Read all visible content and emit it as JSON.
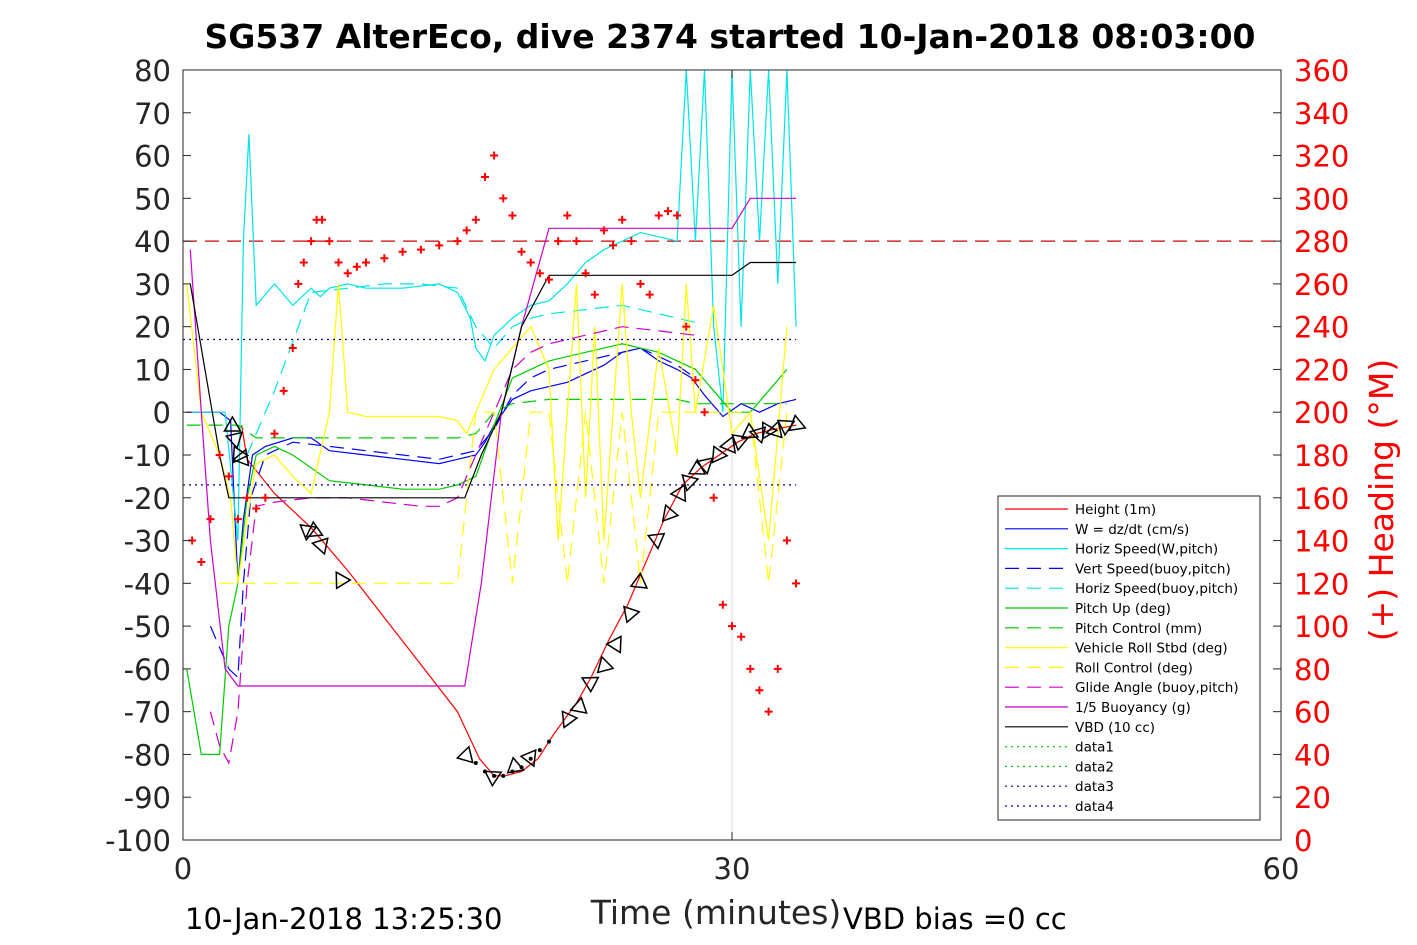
{
  "chart_data": {
    "type": "line",
    "title": "SG537 AlterEco, dive 2374 started 10-Jan-2018 08:03:00",
    "xlabel": "Time (minutes)",
    "ylabel_right": "(+) Heading (°M)",
    "xlim": [
      0,
      60
    ],
    "ylim_left": [
      -100,
      80
    ],
    "ylim_right": [
      0,
      360
    ],
    "x_ticks": [
      0,
      30,
      60
    ],
    "y_ticks_left": [
      80,
      70,
      60,
      50,
      40,
      30,
      20,
      10,
      0,
      -10,
      -20,
      -30,
      -40,
      -50,
      -60,
      -70,
      -80,
      -90,
      -100
    ],
    "y_ticks_right": [
      360,
      340,
      320,
      300,
      280,
      260,
      240,
      220,
      200,
      180,
      160,
      140,
      120,
      100,
      80,
      60,
      40,
      20,
      0
    ],
    "grid": "x-only at 30",
    "legend_position": "lower-right",
    "footer_left": "10-Jan-2018 13:25:30",
    "footer_right": "VBD bias =0 cc",
    "colors": {
      "height": "#ff0000",
      "w": "#0000ff",
      "horiz": "#00e5e5",
      "pitch": "#00cc00",
      "roll": "#ffff00",
      "glide": "#cc00cc",
      "buoy": "#cc00cc",
      "vbd": "#000000",
      "heading": "#ff0000"
    },
    "series": [
      {
        "key": "height",
        "name": "Height (1m)",
        "color": "#ff0000",
        "style": "solid",
        "x": [
          3.2,
          3.5,
          5,
          7,
          9,
          11,
          13,
          15,
          16.2,
          17,
          17.6,
          18.5,
          19.4,
          20.3,
          21.5,
          22.3,
          23.3,
          24.3,
          25.3,
          26.3,
          27.3,
          28.3,
          29.3,
          30.3,
          31.3,
          32.3,
          33.5
        ],
        "y": [
          -3,
          -11,
          -19,
          -27,
          -37,
          -48,
          -59,
          -70,
          -81,
          -85,
          -85,
          -84,
          -81,
          -75,
          -68,
          -62,
          -53,
          -45,
          -35,
          -25,
          -17,
          -13,
          -10,
          -7,
          -5,
          -4,
          -3
        ]
      },
      {
        "key": "w",
        "name": "W = dz/dt (cm/s)",
        "color": "#0000ff",
        "style": "solid",
        "x": [
          0.2,
          1,
          2,
          2.6,
          3,
          3.3,
          3.8,
          4.5,
          6,
          7,
          8,
          10,
          12,
          14,
          15,
          16,
          16.5,
          17,
          18,
          19,
          20,
          21,
          22,
          23,
          24,
          25,
          26,
          27,
          27.8,
          28.5,
          29.5,
          30.5,
          31.5,
          32.5,
          33.5
        ],
        "y": [
          0,
          0,
          0,
          -2,
          -40,
          -25,
          -10,
          -8,
          -6,
          -6,
          -9,
          -10,
          -11,
          -12,
          -11,
          -10,
          -7,
          -3,
          3,
          5,
          6,
          7,
          9,
          11,
          14,
          15,
          12,
          10,
          8,
          4,
          -1,
          2,
          0,
          2,
          3
        ]
      },
      {
        "key": "horizW",
        "name": "Horiz Speed(W,pitch)",
        "color": "#00e5e5",
        "style": "solid",
        "x": [
          0.5,
          1.5,
          2.3,
          3,
          3.3,
          3.6,
          4,
          5,
          6,
          7,
          7.5,
          8,
          9,
          10,
          12,
          14,
          15,
          15.7,
          16,
          16.5,
          17,
          18,
          19,
          20,
          21,
          22,
          23,
          24,
          25,
          26,
          27,
          27.5,
          28,
          28.5,
          29,
          29.5,
          30,
          30.5,
          31,
          31.5,
          32,
          32.5,
          33,
          33.5
        ],
        "y": [
          0,
          0,
          0,
          -30,
          40,
          65,
          25,
          30,
          25,
          29,
          27,
          29,
          30,
          29,
          29,
          30,
          28,
          22,
          15,
          12,
          18,
          22,
          25,
          26,
          30,
          35,
          38,
          40,
          42,
          41,
          40,
          80,
          40,
          80,
          20,
          0,
          80,
          20,
          80,
          40,
          80,
          30,
          80,
          20
        ]
      },
      {
        "key": "vertBuoy",
        "name": "Vert Speed(buoy,pitch)",
        "color": "#0000ff",
        "style": "dashed",
        "x": [
          1.5,
          2,
          2.5,
          3,
          3.3,
          3.7,
          4.5,
          6,
          8,
          10,
          12,
          14,
          15,
          16,
          17,
          18,
          19,
          20,
          22,
          24,
          25,
          26,
          27,
          28
        ],
        "y": [
          -50,
          -55,
          -60,
          -62,
          -40,
          -20,
          -10,
          -7,
          -8,
          -9,
          -10,
          -11,
          -10,
          -9,
          -4,
          4,
          8,
          10,
          12,
          14,
          15,
          13,
          11,
          8
        ]
      },
      {
        "key": "horizBuoy",
        "name": "Horiz Speed(buoy,pitch)",
        "color": "#00e5e5",
        "style": "dashed",
        "x": [
          3.5,
          4,
          5,
          7,
          9,
          11,
          13,
          15,
          16,
          17,
          18,
          19,
          20,
          22,
          24,
          25,
          26,
          27,
          28
        ],
        "y": [
          -10,
          -5,
          5,
          28,
          29,
          30,
          30,
          29,
          20,
          15,
          20,
          22,
          23,
          24,
          25,
          24,
          23,
          22,
          21
        ]
      },
      {
        "key": "pitch",
        "name": "Pitch Up (deg)",
        "color": "#00cc00",
        "style": "solid",
        "x": [
          0.2,
          1,
          1.5,
          2,
          2.5,
          3,
          3.5,
          4,
          5,
          6,
          8,
          10,
          12,
          14,
          15,
          16,
          17,
          18,
          19,
          20,
          21,
          22,
          23,
          24,
          25,
          26,
          27,
          28,
          29,
          30,
          31,
          32,
          33
        ],
        "y": [
          -60,
          -80,
          -80,
          -80,
          -50,
          -40,
          -20,
          -10,
          -8,
          -10,
          -16,
          -17,
          -18,
          -18,
          -17,
          -15,
          -3,
          8,
          10,
          12,
          13,
          14,
          15,
          16,
          15,
          14,
          12,
          10,
          5,
          0,
          0,
          5,
          10
        ]
      },
      {
        "key": "pitchCtrl",
        "name": "Pitch Control (mm)",
        "color": "#00cc00",
        "style": "dashed",
        "x": [
          0.2,
          2,
          3,
          4,
          6,
          8,
          10,
          12,
          14,
          15,
          16,
          17,
          18,
          20,
          22,
          24,
          26,
          27,
          28,
          29,
          30,
          31,
          32,
          33
        ],
        "y": [
          -3,
          -3,
          -3,
          -6,
          -6,
          -6,
          -6,
          -6,
          -6,
          -6,
          -5,
          0,
          2,
          3,
          3,
          3,
          3,
          3,
          2,
          2,
          2,
          2,
          2,
          2
        ]
      },
      {
        "key": "roll",
        "name": "Vehicle Roll Stbd (deg)",
        "color": "#ffff00",
        "style": "solid",
        "x": [
          0.2,
          1,
          2,
          2.6,
          3,
          3.5,
          4,
          5,
          6,
          7,
          8,
          8.5,
          9,
          10,
          12,
          14,
          15,
          15.5,
          16,
          17,
          18,
          19,
          20,
          20.5,
          21,
          21.5,
          22,
          22.5,
          23,
          24,
          24.5,
          25,
          26,
          27,
          27.5,
          28,
          29,
          30,
          31,
          32,
          33
        ],
        "y": [
          30,
          0,
          -10,
          -20,
          -40,
          -25,
          -12,
          -10,
          -15,
          -19,
          0,
          30,
          0,
          -1,
          -1,
          -1,
          -2,
          -5,
          0,
          10,
          15,
          20,
          10,
          -30,
          0,
          30,
          -20,
          20,
          -30,
          30,
          0,
          -20,
          15,
          -10,
          30,
          0,
          25,
          -5,
          0,
          -30,
          20
        ]
      },
      {
        "key": "rollCtrl",
        "name": "Roll Control (deg)",
        "color": "#ffff00",
        "style": "dashed",
        "x": [
          2,
          3,
          4,
          5,
          6,
          7,
          8,
          9,
          10,
          12,
          14,
          15,
          16,
          17,
          18,
          19,
          20,
          21,
          22,
          23,
          24,
          25,
          26,
          27,
          28,
          29,
          30,
          31,
          32,
          33
        ],
        "y": [
          -40,
          -40,
          -40,
          -40,
          -40,
          -40,
          -40,
          -40,
          -40,
          -40,
          -40,
          -40,
          0,
          0,
          -40,
          0,
          0,
          -40,
          0,
          -40,
          0,
          -40,
          0,
          0,
          0,
          0,
          0,
          0,
          -40,
          0
        ]
      },
      {
        "key": "glide",
        "name": "Glide Angle (buoy,pitch)",
        "color": "#cc00cc",
        "style": "dashed",
        "x": [
          1.5,
          2,
          2.5,
          3,
          3.5,
          4,
          5,
          7,
          9,
          11,
          13,
          14,
          15,
          16,
          17,
          18,
          19,
          20,
          22,
          24,
          26,
          28
        ],
        "y": [
          -70,
          -78,
          -82,
          -70,
          -40,
          -22,
          -21,
          -20,
          -20,
          -21,
          -22,
          -22,
          -20,
          -10,
          0,
          10,
          14,
          16,
          18,
          20,
          19,
          18
        ]
      },
      {
        "key": "buoy",
        "name": "1/5 Buoyancy (g)",
        "color": "#cc00cc",
        "style": "solid",
        "x": [
          0.4,
          1,
          1.5,
          2.3,
          3,
          5,
          10,
          15.4,
          16.3,
          17.4,
          18.5,
          20,
          22,
          25,
          28,
          30,
          31,
          32,
          33.5
        ],
        "y": [
          38,
          0,
          -30,
          -60,
          -64,
          -64,
          -64,
          -64,
          -40,
          0,
          20,
          43,
          43,
          43,
          43,
          43,
          50,
          50,
          50
        ]
      },
      {
        "key": "vbd",
        "name": "VBD (10 cc)",
        "color": "#000000",
        "style": "solid",
        "x": [
          0.4,
          1,
          2,
          2.5,
          3,
          5,
          10,
          15.4,
          16.3,
          17.4,
          18.5,
          20,
          25,
          30,
          31,
          32,
          33.5
        ],
        "y": [
          30,
          15,
          -10,
          -20,
          -20,
          -20,
          -20,
          -20,
          -10,
          0,
          20,
          32,
          32,
          32,
          35,
          35,
          35
        ]
      },
      {
        "key": "data1",
        "name": "data1",
        "color": "#00cc00",
        "style": "dotted",
        "x": [],
        "y": []
      },
      {
        "key": "data2",
        "name": "data2",
        "color": "#00cc00",
        "style": "dotted",
        "x": [],
        "y": []
      },
      {
        "key": "data3",
        "name": "data3",
        "color": "#0000aa",
        "style": "dotted",
        "x": [
          0,
          33.5
        ],
        "y": [
          17,
          17
        ]
      },
      {
        "key": "data4",
        "name": "data4",
        "color": "#0000aa",
        "style": "dotted",
        "x": [
          0,
          33.5
        ],
        "y": [
          -17,
          -17
        ]
      }
    ],
    "heading_ref_line": {
      "color": "#cc0000",
      "style": "dashed",
      "y_right": 280
    },
    "heading_markers": {
      "axis": "right",
      "x": [
        0.5,
        1,
        1.5,
        2,
        2.5,
        3,
        3.5,
        4,
        4.5,
        5,
        5.5,
        6,
        6.3,
        6.6,
        7,
        7.3,
        7.6,
        8,
        8.5,
        9,
        9.5,
        10,
        11,
        12,
        13,
        14,
        15,
        15.5,
        16,
        16.5,
        17,
        17.5,
        18,
        18.5,
        19,
        19.5,
        20,
        20.5,
        21,
        21.5,
        22,
        22.5,
        23,
        23.5,
        24,
        24.5,
        25,
        25.5,
        26,
        26.5,
        27,
        27.5,
        28,
        28.5,
        29,
        29.5,
        30,
        30.5,
        31,
        31.5,
        32,
        32.5,
        33,
        33.5
      ],
      "y": [
        140,
        130,
        150,
        180,
        170,
        150,
        160,
        155,
        160,
        190,
        210,
        230,
        260,
        270,
        280,
        290,
        290,
        280,
        270,
        265,
        268,
        270,
        272,
        275,
        276,
        278,
        280,
        285,
        290,
        310,
        320,
        300,
        292,
        275,
        270,
        265,
        262,
        280,
        292,
        280,
        265,
        255,
        285,
        278,
        290,
        280,
        260,
        255,
        292,
        294,
        292,
        240,
        215,
        200,
        160,
        110,
        100,
        95,
        80,
        70,
        60,
        80,
        140,
        120
      ]
    },
    "triangle_markers": {
      "x": [
        2.7,
        2.9,
        3.1,
        3.3,
        6.8,
        7.1,
        7.5,
        8.6,
        15.5,
        17,
        18.2,
        19,
        21,
        21.6,
        22.2,
        23,
        23.7,
        24.5,
        25,
        25.9,
        26.5,
        27.1,
        27.6,
        28.1,
        28.6,
        29.3,
        29.9,
        30.4,
        30.9,
        31.4,
        31.9,
        32.4,
        33,
        33.6
      ],
      "y": [
        -3,
        -6,
        -10,
        -11,
        -28,
        -28,
        -31,
        -39,
        -80,
        -85,
        -83,
        -81,
        -72,
        -69,
        -63,
        -59,
        -54,
        -47,
        -40,
        -30,
        -24,
        -19,
        -16,
        -13,
        -12,
        -10,
        -8,
        -7,
        -5,
        -5,
        -4,
        -4,
        -3,
        -3
      ]
    },
    "bottom_dots": {
      "x": [
        16,
        16.5,
        17,
        17.5,
        18,
        18.5,
        19,
        19.5,
        20
      ],
      "y": [
        -82,
        -84,
        -85,
        -85,
        -84,
        -83,
        -81,
        -79,
        -77
      ]
    }
  }
}
